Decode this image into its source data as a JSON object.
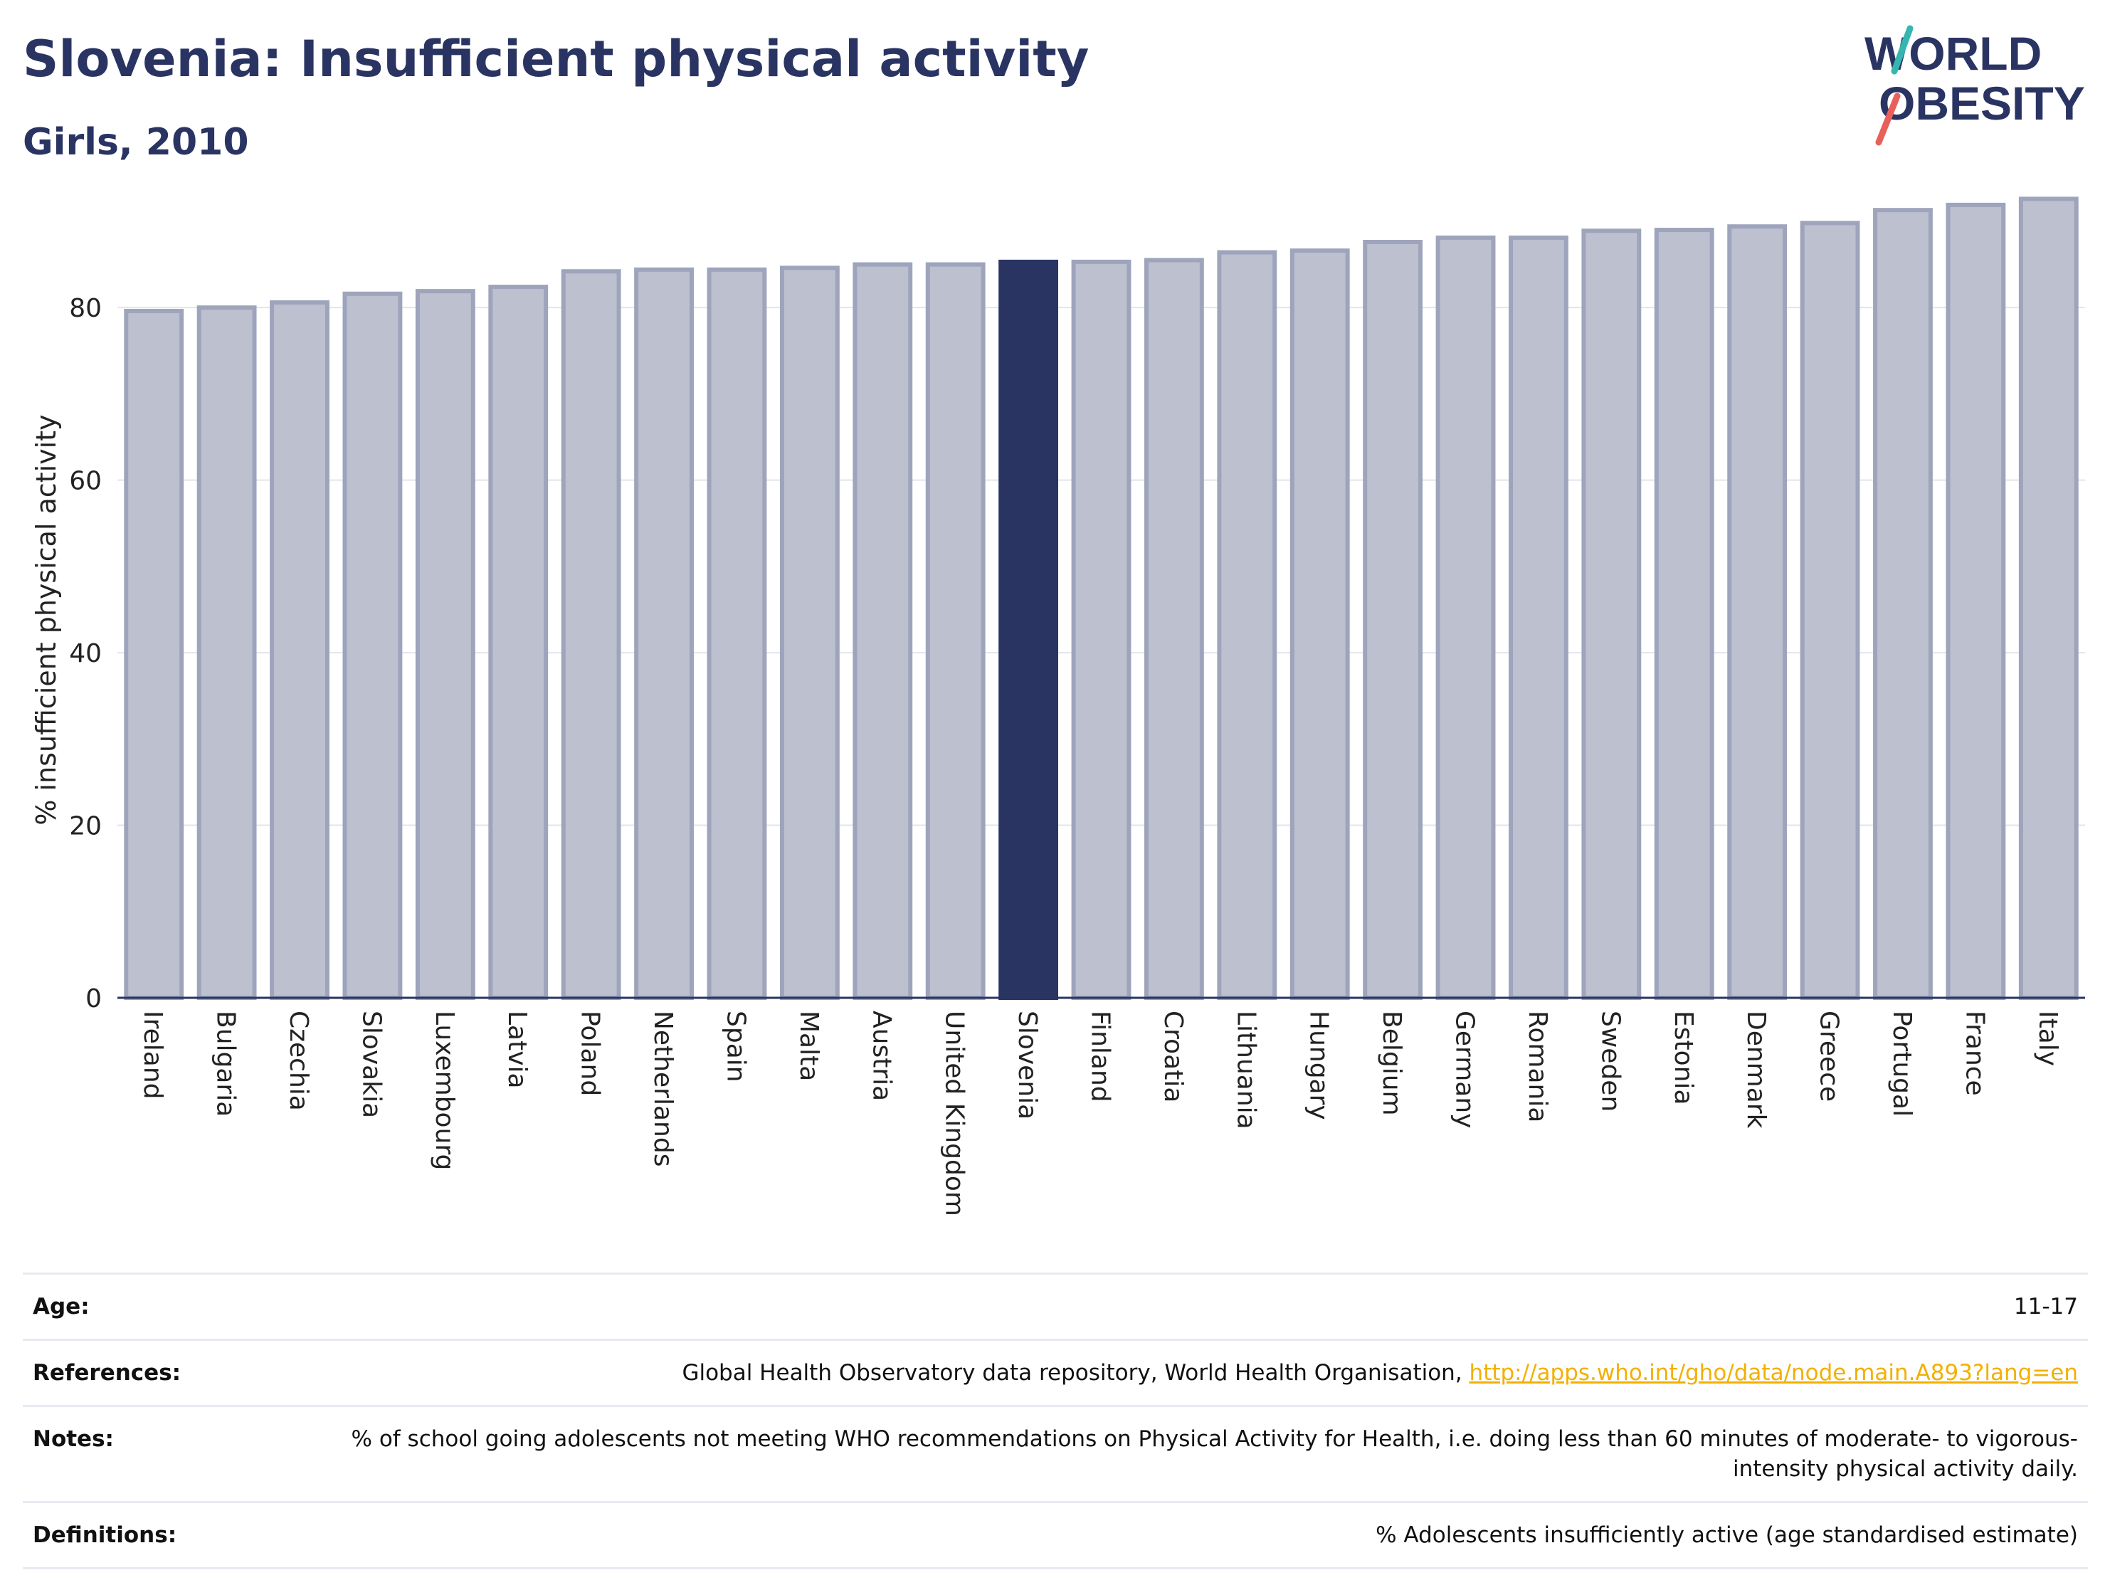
{
  "header": {
    "title": "Slovenia: Insufficient physical activity",
    "subtitle": "Girls, 2010"
  },
  "logo": {
    "line1": "WORLD",
    "line2": "OBESITY"
  },
  "colors": {
    "bar": "#bcc0cf",
    "bar_stroke": "#9ea4bb",
    "highlight": "#2a3463",
    "grid": "#e3e5ec",
    "title": "#2a3463",
    "link": "#f3b000"
  },
  "chart_data": {
    "type": "bar",
    "title": "Slovenia: Insufficient physical activity",
    "subtitle": "Girls, 2010",
    "ylabel": "% insufficient physical activity",
    "xlabel": "",
    "ylim": [
      0,
      95
    ],
    "yticks": [
      0,
      20,
      40,
      60,
      80
    ],
    "grid": true,
    "highlight": "Slovenia",
    "categories": [
      "Ireland",
      "Bulgaria",
      "Czechia",
      "Slovakia",
      "Luxembourg",
      "Latvia",
      "Poland",
      "Netherlands",
      "Spain",
      "Malta",
      "Austria",
      "United Kingdom",
      "Slovenia",
      "Finland",
      "Croatia",
      "Lithuania",
      "Hungary",
      "Belgium",
      "Germany",
      "Romania",
      "Sweden",
      "Estonia",
      "Denmark",
      "Greece",
      "Portugal",
      "France",
      "Italy"
    ],
    "values": [
      79.6,
      80.0,
      80.6,
      81.6,
      81.9,
      82.4,
      84.2,
      84.4,
      84.4,
      84.6,
      85.0,
      85.0,
      85.3,
      85.3,
      85.5,
      86.4,
      86.6,
      87.6,
      88.1,
      88.1,
      88.9,
      89.0,
      89.4,
      89.8,
      91.3,
      91.9,
      92.6
    ]
  },
  "meta": {
    "age_label": "Age:",
    "age_value": "11-17",
    "references_label": "References:",
    "references_text": "Global Health Observatory data repository, World Health Organisation,",
    "references_link": "http://apps.who.int/gho/data/node.main.A893?lang=en",
    "notes_label": "Notes:",
    "notes_value": "% of school going adolescents not meeting WHO recommendations on Physical Activity for Health, i.e. doing less than 60 minutes of moderate- to vigorous-intensity physical activity daily.",
    "definitions_label": "Definitions:",
    "definitions_value": "% Adolescents insufficiently active (age standardised estimate)"
  }
}
